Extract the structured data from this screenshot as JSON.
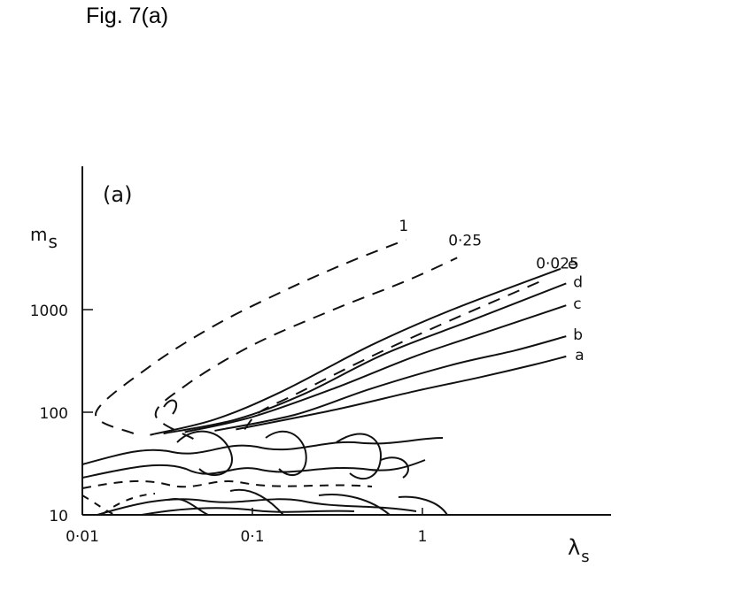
{
  "caption": "Fig. 7(a)",
  "chart_data": {
    "type": "line",
    "panel_label": "(a)",
    "xlabel": "λs",
    "ylabel": "ms",
    "xscale": "log",
    "yscale": "log",
    "xlim": [
      0.01,
      10
    ],
    "ylim": [
      10,
      10000
    ],
    "x_ticks": [
      {
        "value": 0.01,
        "label": "0·01"
      },
      {
        "value": 0.1,
        "label": "0·1"
      },
      {
        "value": 1,
        "label": "1"
      }
    ],
    "y_ticks": [
      {
        "value": 10,
        "label": "10"
      },
      {
        "value": 100,
        "label": "100"
      },
      {
        "value": 1000,
        "label": "1000"
      }
    ],
    "series": [
      {
        "name": "1",
        "style": "dashed",
        "x": [
          0.02,
          0.012,
          0.025,
          0.06,
          0.15,
          0.35,
          0.8
        ],
        "y": [
          62,
          98,
          280,
          700,
          1500,
          2800,
          4800
        ]
      },
      {
        "name": "0·25",
        "style": "dashed",
        "x": [
          0.045,
          0.027,
          0.04,
          0.1,
          0.3,
          0.8,
          1.6
        ],
        "y": [
          55,
          93,
          180,
          450,
          1000,
          1900,
          3200
        ]
      },
      {
        "name": "0·025",
        "style": "dashed",
        "x": [
          0.09,
          0.11,
          0.18,
          0.5,
          1.5,
          5
        ],
        "y": [
          68,
          100,
          150,
          350,
          800,
          1900
        ]
      },
      {
        "name": "e",
        "style": "solid",
        "x": [
          0.025,
          0.06,
          0.15,
          0.5,
          1.5,
          6.5
        ],
        "y": [
          60,
          85,
          160,
          450,
          1000,
          2500
        ]
      },
      {
        "name": "d",
        "style": "solid",
        "x": [
          0.03,
          0.08,
          0.2,
          0.6,
          2,
          7
        ],
        "y": [
          62,
          85,
          150,
          370,
          800,
          1800
        ]
      },
      {
        "name": "c",
        "style": "solid",
        "x": [
          0.04,
          0.1,
          0.3,
          0.9,
          2.5,
          7
        ],
        "y": [
          64,
          90,
          170,
          350,
          620,
          1100
        ]
      },
      {
        "name": "b",
        "style": "solid",
        "x": [
          0.06,
          0.18,
          0.5,
          1.5,
          3.5,
          7
        ],
        "y": [
          66,
          95,
          170,
          290,
          400,
          550
        ]
      },
      {
        "name": "a",
        "style": "solid",
        "x": [
          0.08,
          0.3,
          0.9,
          2.2,
          4.5,
          7
        ],
        "y": [
          68,
          105,
          160,
          220,
          290,
          350
        ]
      }
    ],
    "lower_region": {
      "description": "irregular wavy contours below m_s ≈ 60",
      "style": "mixed"
    }
  }
}
